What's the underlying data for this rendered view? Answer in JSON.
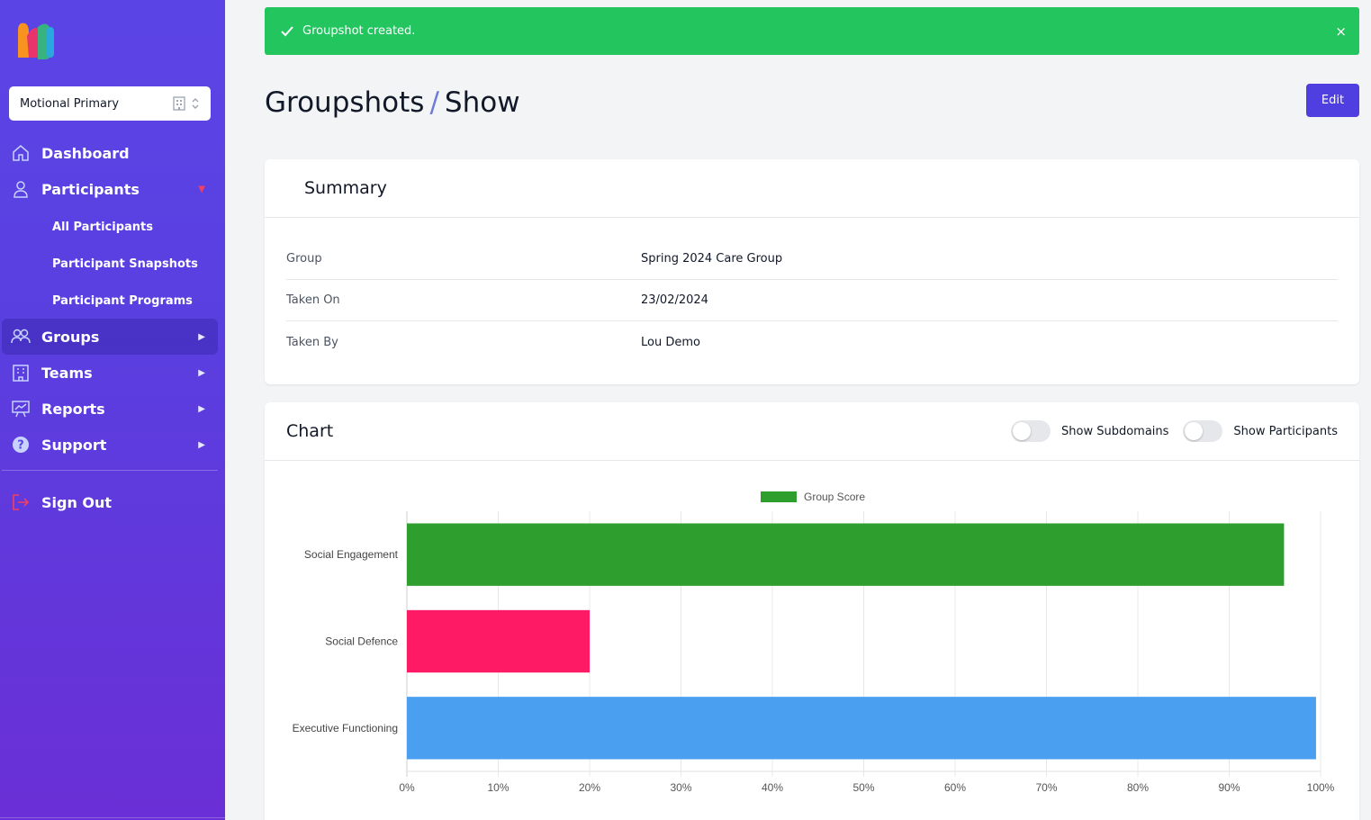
{
  "sidebar": {
    "org_name": "Motional Primary",
    "nav": {
      "dashboard": "Dashboard",
      "participants": "Participants",
      "sub": {
        "all": "All Participants",
        "snapshots": "Participant Snapshots",
        "programs": "Participant Programs"
      },
      "groups": "Groups",
      "teams": "Teams",
      "reports": "Reports",
      "support": "Support",
      "sign_out": "Sign Out"
    }
  },
  "flash": {
    "message": "Groupshot created.",
    "close": "×"
  },
  "page": {
    "title_main": "Groupshots",
    "title_sep": "/",
    "title_sub": "Show",
    "edit_label": "Edit"
  },
  "summary": {
    "title": "Summary",
    "rows": [
      {
        "label": "Group",
        "value": "Spring 2024 Care Group"
      },
      {
        "label": "Taken On",
        "value": "23/02/2024"
      },
      {
        "label": "Taken By",
        "value": "Lou Demo"
      }
    ]
  },
  "chart_card": {
    "title": "Chart",
    "toggle_subdomains": "Show Subdomains",
    "toggle_participants": "Show Participants"
  },
  "colors": {
    "accent": "#4f3ee0",
    "success": "#22c55e",
    "legend_swatch": "#2e9e2e"
  },
  "chart_data": {
    "type": "bar",
    "orientation": "horizontal",
    "legend": [
      "Group Score"
    ],
    "legend_position": "top",
    "categories": [
      "Social Engagement",
      "Social Defence",
      "Executive Functioning"
    ],
    "series": [
      {
        "name": "Group Score",
        "values": [
          96,
          20,
          99.5
        ],
        "colors": [
          "#2e9e2e",
          "#ff1a66",
          "#4a9ff0"
        ]
      }
    ],
    "xlim": [
      0,
      100
    ],
    "x_ticks": [
      "0%",
      "10%",
      "20%",
      "30%",
      "40%",
      "50%",
      "60%",
      "70%",
      "80%",
      "90%",
      "100%"
    ],
    "grid": true
  }
}
